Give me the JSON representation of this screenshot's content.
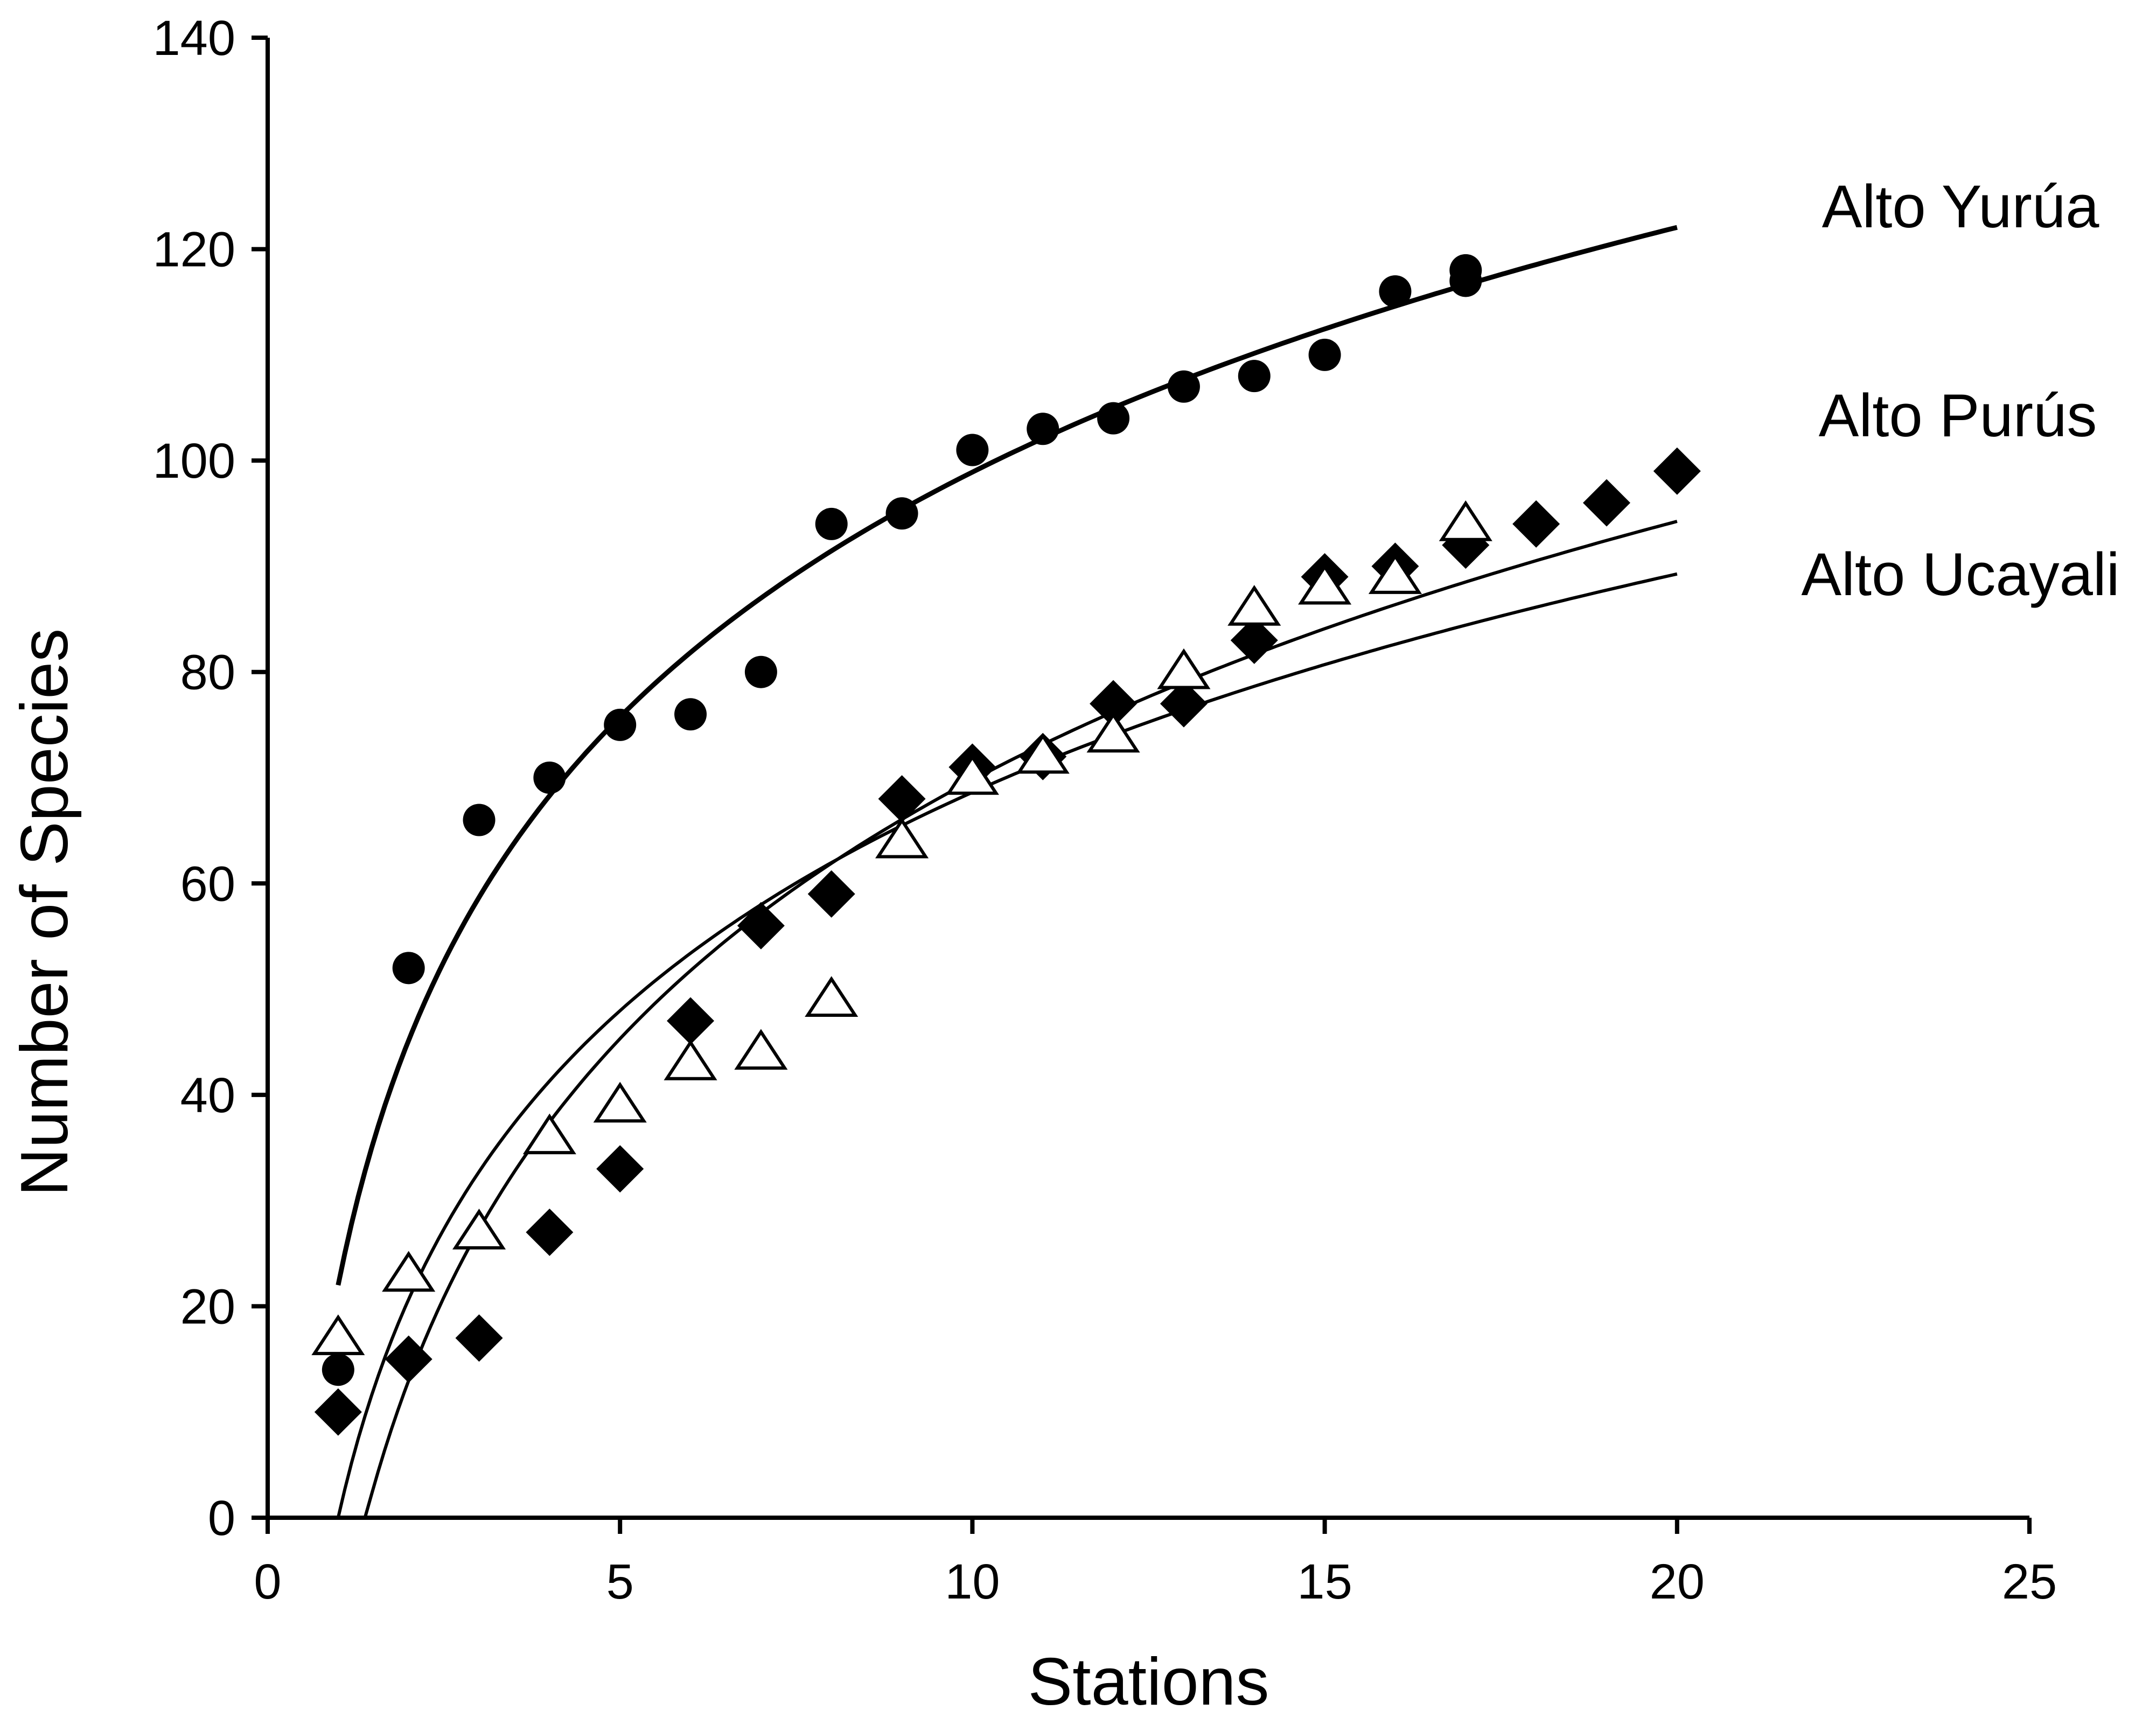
{
  "chart_data": {
    "type": "scatter",
    "title": "",
    "xlabel": "Stations",
    "ylabel": "Number of Species",
    "xlim": [
      0,
      25
    ],
    "ylim": [
      0,
      140
    ],
    "xticks": [
      0,
      5,
      10,
      15,
      20,
      25
    ],
    "yticks": [
      0,
      20,
      40,
      60,
      80,
      100,
      120,
      140
    ],
    "xtick_labels": [
      "0",
      "5",
      "10",
      "15",
      "20",
      "25"
    ],
    "ytick_labels": [
      "0",
      "20",
      "40",
      "60",
      "80",
      "100",
      "120",
      "140"
    ],
    "grid": false,
    "legend": "none; series are labeled directly at right end of curves",
    "series": [
      {
        "name": "Alto Yurúa",
        "marker": "filled-circle",
        "color": "#000000",
        "x": [
          1,
          2,
          3,
          4,
          5,
          6,
          7,
          8,
          9,
          10,
          11,
          12,
          13,
          14,
          15,
          16,
          17,
          17
        ],
        "y": [
          14,
          52,
          66,
          70,
          75,
          76,
          80,
          94,
          95,
          101,
          103,
          104,
          107,
          108,
          110,
          116,
          117,
          118
        ],
        "fit": {
          "type": "logarithmic",
          "a": 22,
          "b": 33.4,
          "x_range": [
            1,
            20
          ]
        }
      },
      {
        "name": "Alto Purús",
        "marker": "filled-diamond",
        "color": "#000000",
        "x": [
          1,
          2,
          3,
          4,
          5,
          6,
          7,
          8,
          9,
          10,
          11,
          12,
          13,
          14,
          15,
          16,
          17,
          18,
          19,
          20
        ],
        "y": [
          10,
          15,
          17,
          27,
          33,
          47,
          56,
          59,
          68,
          71,
          72,
          77,
          77,
          83,
          89,
          90,
          92,
          94,
          96,
          99
        ],
        "fit": {
          "type": "logarithmic",
          "a": -11.5,
          "b": 35.3,
          "x_range": [
            1.38,
            20
          ]
        }
      },
      {
        "name": "Alto Ucayali",
        "marker": "open-triangle",
        "color": "#000000",
        "x": [
          1,
          2,
          3,
          4,
          5,
          6,
          7,
          8,
          9,
          10,
          11,
          12,
          13,
          14,
          15,
          16,
          17
        ],
        "y": [
          17,
          23,
          27,
          36,
          39,
          43,
          44,
          49,
          64,
          70,
          72,
          74,
          80,
          86,
          88,
          89,
          94
        ],
        "fit": {
          "type": "logarithmic",
          "a": 0,
          "b": 29.8,
          "x_range": [
            1,
            20
          ]
        }
      }
    ],
    "series_labels": [
      "Alto Yurúa",
      "Alto Purús",
      "Alto Ucayali"
    ]
  }
}
